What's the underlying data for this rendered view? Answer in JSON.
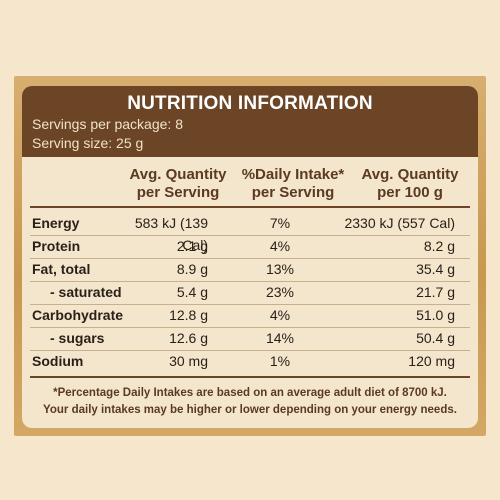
{
  "panel": {
    "title": "NUTRITION INFORMATION",
    "servings_per_package": "Servings per package: 8",
    "serving_size": "Serving size: 25 g"
  },
  "columns": {
    "c1": [
      "Avg. Quantity",
      "per Serving"
    ],
    "c2": [
      "%Daily Intake*",
      "per Serving"
    ],
    "c3": [
      "Avg. Quantity",
      "per 100 g"
    ]
  },
  "rows": [
    {
      "name": "Energy",
      "per_serving": "583 kJ (139 Cal)",
      "daily_intake": "7%",
      "per_100g": "2330 kJ (557 Cal)"
    },
    {
      "name": "Protein",
      "per_serving": "2.1 g",
      "daily_intake": "4%",
      "per_100g": "8.2 g"
    },
    {
      "name": "Fat, total",
      "per_serving": "8.9 g",
      "daily_intake": "13%",
      "per_100g": "35.4 g"
    },
    {
      "name": "- saturated",
      "per_serving": "5.4 g",
      "daily_intake": "23%",
      "per_100g": "21.7 g"
    },
    {
      "name": "Carbohydrate",
      "per_serving": "12.8 g",
      "daily_intake": "4%",
      "per_100g": "51.0 g"
    },
    {
      "name": "- sugars",
      "per_serving": "12.6 g",
      "daily_intake": "14%",
      "per_100g": "50.4 g"
    },
    {
      "name": "Sodium",
      "per_serving": "30 mg",
      "daily_intake": "1%",
      "per_100g": "120 mg"
    }
  ],
  "footnote": [
    "*Percentage Daily Intakes are based on an average adult diet of 8700 kJ.",
    "Your daily intakes may be higher or lower depending on your energy needs."
  ],
  "colors": {
    "header_brown": "#6b4526",
    "panel_cream": "#f4e6cd",
    "frame_gold": "#c9984f"
  }
}
